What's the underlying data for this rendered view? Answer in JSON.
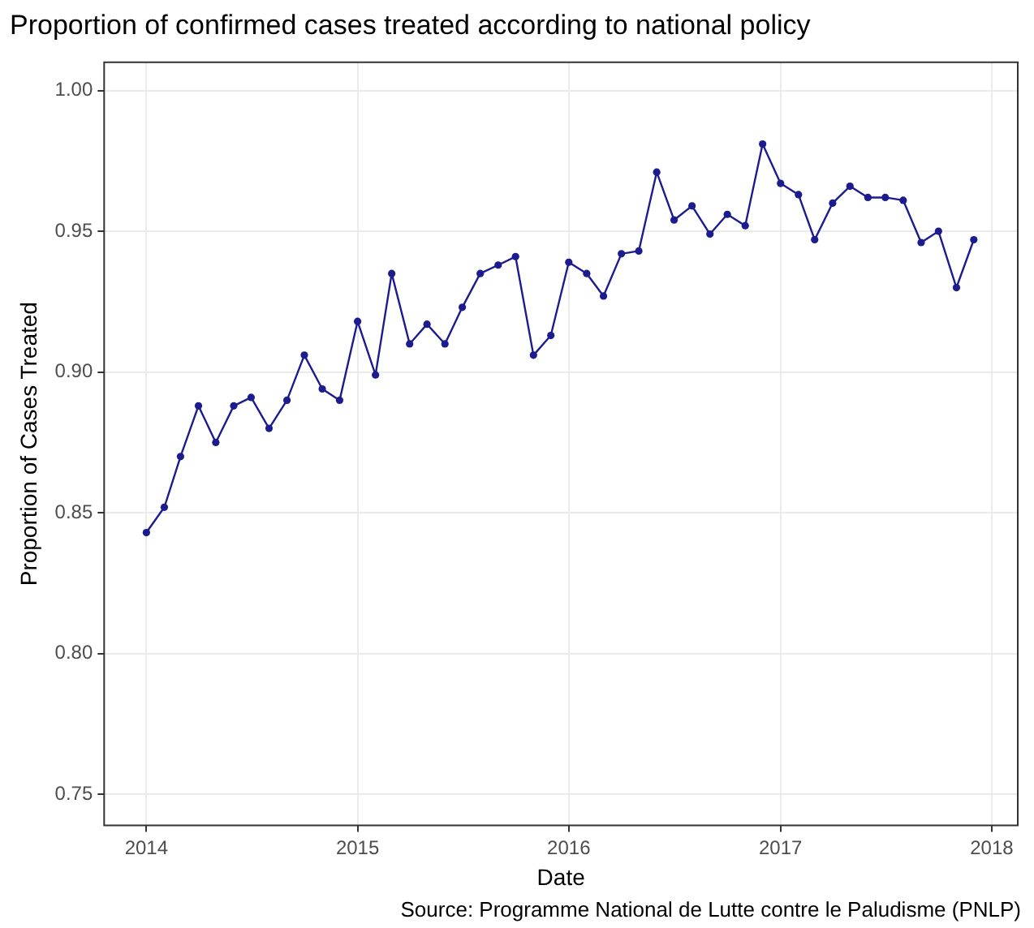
{
  "chart_data": {
    "type": "line",
    "title": "Proportion of confirmed cases treated according to national policy",
    "xlabel": "Date",
    "ylabel": "Proportion of Cases Treated",
    "annotations": [
      "Source: Programme National de Lutte contre le Paludisme (PNLP)"
    ],
    "x": [
      "2014-01",
      "2014-02",
      "2014-03",
      "2014-04",
      "2014-05",
      "2014-06",
      "2014-07",
      "2014-08",
      "2014-09",
      "2014-10",
      "2014-11",
      "2014-12",
      "2015-01",
      "2015-02",
      "2015-03",
      "2015-04",
      "2015-05",
      "2015-06",
      "2015-07",
      "2015-08",
      "2015-09",
      "2015-10",
      "2015-11",
      "2015-12",
      "2016-01",
      "2016-02",
      "2016-03",
      "2016-04",
      "2016-05",
      "2016-06",
      "2016-07",
      "2016-08",
      "2016-09",
      "2016-10",
      "2016-11",
      "2016-12",
      "2017-01",
      "2017-02",
      "2017-03",
      "2017-04",
      "2017-05",
      "2017-06",
      "2017-07",
      "2017-08",
      "2017-09",
      "2017-10",
      "2017-11",
      "2017-12"
    ],
    "series": [
      {
        "color": "#1c1c8f",
        "values": [
          0.843,
          0.852,
          0.87,
          0.888,
          0.875,
          0.888,
          0.891,
          0.88,
          0.89,
          0.906,
          0.894,
          0.89,
          0.918,
          0.899,
          0.935,
          0.91,
          0.917,
          0.91,
          0.923,
          0.935,
          0.938,
          0.941,
          0.906,
          0.913,
          0.939,
          0.935,
          0.927,
          0.942,
          0.943,
          0.971,
          0.954,
          0.959,
          0.949,
          0.956,
          0.952,
          0.981,
          0.967,
          0.963,
          0.947,
          0.96,
          0.966,
          0.962,
          0.962,
          0.961,
          0.946,
          0.95,
          0.93,
          0.947
        ]
      }
    ],
    "xlim": [
      "2013-10-20",
      "2018-02-15"
    ],
    "xticks": [
      {
        "value": "2014-01-01",
        "label": "2014"
      },
      {
        "value": "2015-01-01",
        "label": "2015"
      },
      {
        "value": "2016-01-01",
        "label": "2016"
      },
      {
        "value": "2017-01-01",
        "label": "2017"
      },
      {
        "value": "2018-01-01",
        "label": "2018"
      }
    ],
    "ylim": [
      0.739,
      1.01
    ],
    "yticks": [
      {
        "value": 0.75,
        "label": "0.75"
      },
      {
        "value": 0.8,
        "label": "0.80"
      },
      {
        "value": 0.85,
        "label": "0.85"
      },
      {
        "value": 0.9,
        "label": "0.90"
      },
      {
        "value": 0.95,
        "label": "0.95"
      },
      {
        "value": 1.0,
        "label": "1.00"
      }
    ],
    "grid": true,
    "legend": false,
    "marker": "circle",
    "line_style": "solid"
  }
}
